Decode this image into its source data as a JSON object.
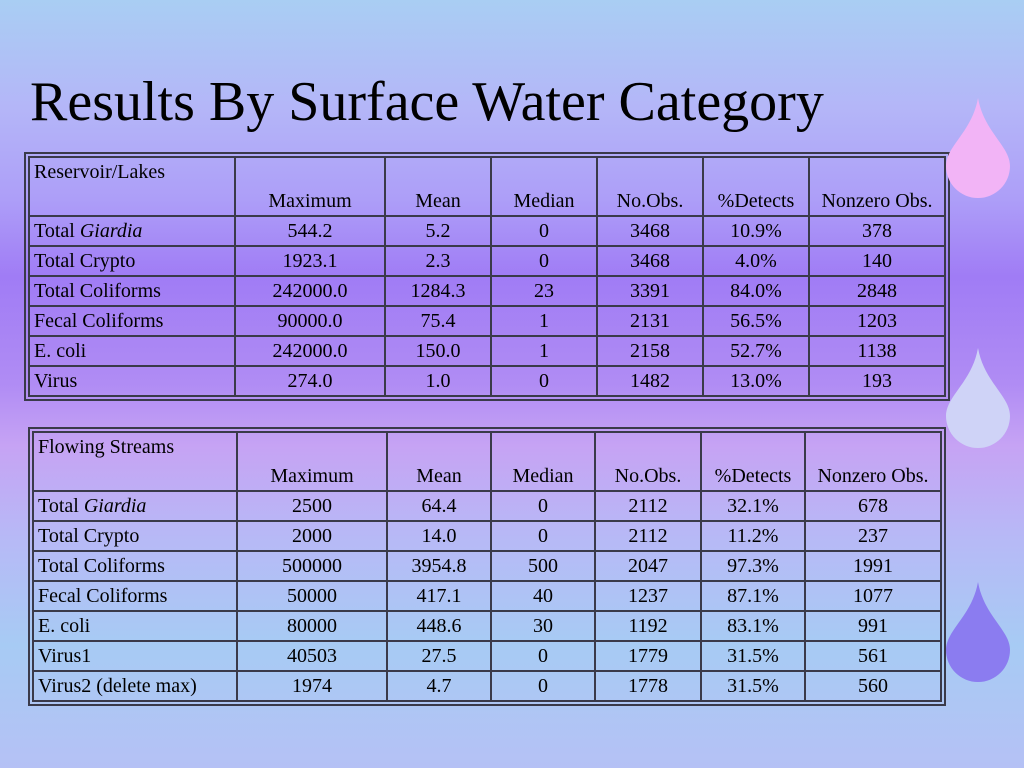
{
  "slide": {
    "title": "Results By Surface Water Category"
  },
  "columns": [
    "Maximum",
    "Mean",
    "Median",
    "No.Obs.",
    "%Detects",
    "Nonzero Obs."
  ],
  "tables": [
    {
      "category": "Reservoir/Lakes",
      "rows": [
        {
          "label_prefix": "Total ",
          "label_em": "Giardia",
          "values": [
            "544.2",
            "5.2",
            "0",
            "3468",
            "10.9%",
            "378"
          ]
        },
        {
          "label_prefix": "Total Crypto",
          "label_em": "",
          "values": [
            "1923.1",
            "2.3",
            "0",
            "3468",
            "4.0%",
            "140"
          ]
        },
        {
          "label_prefix": "Total Coliforms",
          "label_em": "",
          "values": [
            "242000.0",
            "1284.3",
            "23",
            "3391",
            "84.0%",
            "2848"
          ]
        },
        {
          "label_prefix": "Fecal Coliforms",
          "label_em": "",
          "values": [
            "90000.0",
            "75.4",
            "1",
            "2131",
            "56.5%",
            "1203"
          ]
        },
        {
          "label_prefix": "E. coli",
          "label_em": "",
          "values": [
            "242000.0",
            "150.0",
            "1",
            "2158",
            "52.7%",
            "1138"
          ]
        },
        {
          "label_prefix": "Virus",
          "label_em": "",
          "values": [
            "274.0",
            "1.0",
            "0",
            "1482",
            "13.0%",
            "193"
          ]
        }
      ]
    },
    {
      "category": "Flowing Streams",
      "rows": [
        {
          "label_prefix": "Total ",
          "label_em": "Giardia",
          "values": [
            "2500",
            "64.4",
            "0",
            "2112",
            "32.1%",
            "678"
          ]
        },
        {
          "label_prefix": "Total Crypto",
          "label_em": "",
          "values": [
            "2000",
            "14.0",
            "0",
            "2112",
            "11.2%",
            "237"
          ]
        },
        {
          "label_prefix": "Total Coliforms",
          "label_em": "",
          "values": [
            "500000",
            "3954.8",
            "500",
            "2047",
            "97.3%",
            "1991"
          ]
        },
        {
          "label_prefix": "Fecal Coliforms",
          "label_em": "",
          "values": [
            "50000",
            "417.1",
            "40",
            "1237",
            "87.1%",
            "1077"
          ]
        },
        {
          "label_prefix": "E. coli",
          "label_em": "",
          "values": [
            "80000",
            "448.6",
            "30",
            "1192",
            "83.1%",
            "991"
          ]
        },
        {
          "label_prefix": "Virus1",
          "label_em": "",
          "values": [
            "40503",
            "27.5",
            "0",
            "1779",
            "31.5%",
            "561"
          ]
        },
        {
          "label_prefix": "Virus2 (delete max)",
          "label_em": "",
          "values": [
            "1974",
            "4.7",
            "0",
            "1778",
            "31.5%",
            "560"
          ]
        }
      ]
    }
  ],
  "decorations": {
    "drop_icons": [
      {
        "name": "water-drop-pink-icon",
        "color": "#f2b4f6"
      },
      {
        "name": "water-drop-lavender-icon",
        "color": "#cfd3f7"
      },
      {
        "name": "water-drop-violet-icon",
        "color": "#8b7cf0"
      }
    ]
  }
}
